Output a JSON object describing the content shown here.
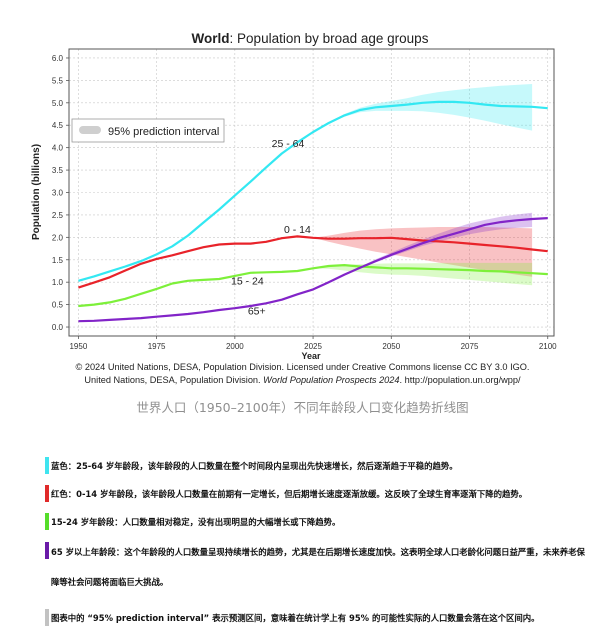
{
  "chart_data": {
    "type": "line",
    "title_bold": "World",
    "title_rest": ": Population by broad age groups",
    "xlabel": "Year",
    "ylabel": "Population (billions)",
    "xlim": [
      1947,
      2102
    ],
    "ylim": [
      -0.2,
      6.2
    ],
    "x_ticks": [
      1950,
      1975,
      2000,
      2025,
      2050,
      2075,
      2100
    ],
    "y_ticks": [
      0.0,
      0.5,
      1.0,
      1.5,
      2.0,
      2.5,
      3.0,
      3.5,
      4.0,
      4.5,
      5.0,
      5.5,
      6.0
    ],
    "y_tick_labels": [
      "0.0",
      "0.5",
      "1.0",
      "1.5",
      "2.0",
      "2.5",
      "3.0",
      "3.5",
      "4.0",
      "4.5",
      "5.0",
      "5.5",
      "6.0"
    ],
    "grid": true,
    "legend_label": "95% prediction interval",
    "legend_position": "top-left",
    "projection_start": 2024,
    "series": [
      {
        "name": "25 - 64",
        "color": "#33e8f2",
        "x": [
          1950,
          1955,
          1960,
          1965,
          1970,
          1975,
          1980,
          1985,
          1990,
          1995,
          2000,
          2005,
          2010,
          2015,
          2020,
          2025,
          2030,
          2035,
          2040,
          2045,
          2050,
          2055,
          2060,
          2065,
          2070,
          2075,
          2080,
          2085,
          2090,
          2095,
          2100
        ],
        "values": [
          1.03,
          1.13,
          1.24,
          1.35,
          1.47,
          1.62,
          1.8,
          2.04,
          2.33,
          2.62,
          2.93,
          3.24,
          3.56,
          3.87,
          4.12,
          4.35,
          4.55,
          4.72,
          4.84,
          4.9,
          4.93,
          4.96,
          5.0,
          5.02,
          5.02,
          5.0,
          4.96,
          4.93,
          4.92,
          4.91,
          4.88
        ],
        "band_low": [
          4.35,
          4.54,
          4.69,
          4.79,
          4.82,
          4.82,
          4.82,
          4.81,
          4.78,
          4.73,
          4.67,
          4.6,
          4.52,
          4.45,
          4.38
        ],
        "band_high": [
          4.35,
          4.56,
          4.75,
          4.89,
          4.98,
          5.04,
          5.1,
          5.18,
          5.24,
          5.28,
          5.32,
          5.35,
          5.38,
          5.4,
          5.42
        ]
      },
      {
        "name": "0 - 14",
        "color": "#e8232a",
        "x": [
          1950,
          1955,
          1960,
          1965,
          1970,
          1975,
          1980,
          1985,
          1990,
          1995,
          2000,
          2005,
          2010,
          2015,
          2020,
          2025,
          2030,
          2035,
          2040,
          2045,
          2050,
          2055,
          2060,
          2065,
          2070,
          2075,
          2080,
          2085,
          2090,
          2095,
          2100
        ],
        "values": [
          0.88,
          0.99,
          1.11,
          1.26,
          1.41,
          1.52,
          1.6,
          1.69,
          1.78,
          1.84,
          1.86,
          1.86,
          1.9,
          1.98,
          2.02,
          1.99,
          1.97,
          1.97,
          1.98,
          1.98,
          1.99,
          1.96,
          1.93,
          1.91,
          1.89,
          1.86,
          1.83,
          1.8,
          1.77,
          1.73,
          1.69
        ],
        "band_low": [
          1.99,
          1.9,
          1.82,
          1.75,
          1.68,
          1.62,
          1.56,
          1.5,
          1.44,
          1.38,
          1.32,
          1.27,
          1.22,
          1.17,
          1.12
        ],
        "band_high": [
          1.99,
          2.04,
          2.1,
          2.15,
          2.18,
          2.2,
          2.21,
          2.22,
          2.23,
          2.23,
          2.23,
          2.23,
          2.22,
          2.21,
          2.2
        ]
      },
      {
        "name": "15 - 24",
        "color": "#7df03a",
        "x": [
          1950,
          1955,
          1960,
          1965,
          1970,
          1975,
          1980,
          1985,
          1990,
          1995,
          2000,
          2005,
          2010,
          2015,
          2020,
          2025,
          2030,
          2035,
          2040,
          2045,
          2050,
          2055,
          2060,
          2065,
          2070,
          2075,
          2080,
          2085,
          2090,
          2095,
          2100
        ],
        "values": [
          0.47,
          0.5,
          0.55,
          0.63,
          0.74,
          0.85,
          0.97,
          1.03,
          1.05,
          1.07,
          1.14,
          1.21,
          1.22,
          1.23,
          1.25,
          1.31,
          1.36,
          1.38,
          1.35,
          1.33,
          1.31,
          1.31,
          1.3,
          1.29,
          1.28,
          1.27,
          1.25,
          1.24,
          1.22,
          1.2,
          1.18
        ],
        "band_low": [
          1.31,
          1.3,
          1.26,
          1.22,
          1.19,
          1.17,
          1.16,
          1.14,
          1.11,
          1.08,
          1.05,
          1.02,
          0.99,
          0.96,
          0.93
        ],
        "band_high": [
          1.31,
          1.37,
          1.39,
          1.4,
          1.41,
          1.42,
          1.42,
          1.42,
          1.43,
          1.43,
          1.43,
          1.43,
          1.43,
          1.43,
          1.43
        ]
      },
      {
        "name": "65+",
        "color": "#8224c8",
        "x": [
          1950,
          1955,
          1960,
          1965,
          1970,
          1975,
          1980,
          1985,
          1990,
          1995,
          2000,
          2005,
          2010,
          2015,
          2020,
          2025,
          2030,
          2035,
          2040,
          2045,
          2050,
          2055,
          2060,
          2065,
          2070,
          2075,
          2080,
          2085,
          2090,
          2095,
          2100
        ],
        "values": [
          0.13,
          0.14,
          0.16,
          0.18,
          0.2,
          0.23,
          0.26,
          0.29,
          0.33,
          0.38,
          0.42,
          0.47,
          0.53,
          0.61,
          0.73,
          0.84,
          1.0,
          1.17,
          1.32,
          1.47,
          1.61,
          1.74,
          1.87,
          1.98,
          2.08,
          2.18,
          2.28,
          2.34,
          2.38,
          2.41,
          2.43
        ],
        "band_low": [
          0.84,
          0.99,
          1.16,
          1.3,
          1.44,
          1.57,
          1.69,
          1.81,
          1.9,
          1.99,
          2.07,
          2.13,
          2.18,
          2.21,
          2.23
        ],
        "band_high": [
          0.84,
          1.01,
          1.18,
          1.34,
          1.51,
          1.66,
          1.81,
          1.95,
          2.08,
          2.2,
          2.31,
          2.39,
          2.46,
          2.51,
          2.55
        ]
      }
    ],
    "line_labels": [
      {
        "text": "25 - 64",
        "x": 2017,
        "y": 4.02
      },
      {
        "text": "0 - 14",
        "x": 2020,
        "y": 2.1
      },
      {
        "text": "15 - 24",
        "x": 2004,
        "y": 0.95
      },
      {
        "text": "65+",
        "x": 2007,
        "y": 0.28
      }
    ]
  },
  "credit": {
    "line1": "© 2024 United Nations, DESA, Population Division. Licensed under Creative Commons license CC BY 3.0 IGO.",
    "line2_a": "United Nations, DESA, Population Division. ",
    "line2_italic": "World Population Prospects 2024",
    "line2_b": ". http://population.un.org/wpp/"
  },
  "caption": "世界人口（1950–2100年）不同年龄段人口变化趋势折线图",
  "notes": [
    {
      "color": "#3fe4ef",
      "text": "蓝色：25-64 岁年龄段，该年龄段的人口数量在整个时间段内呈现出先快速增长，然后逐渐趋于平稳的趋势。"
    },
    {
      "color": "#e02a2a",
      "text": "红色：0-14 岁年龄段，该年龄段人口数量在前期有一定增长，但后期增长速度逐渐放缓。这反映了全球生育率逐渐下降的趋势。"
    },
    {
      "color": "#55dd2a",
      "text": "15-24 岁年龄段：人口数量相对稳定，没有出现明显的大幅增长或下降趋势。"
    },
    {
      "color": "#6a1aa8",
      "text": "65 岁以上年龄段：这个年龄段的人口数量呈现持续增长的趋势，尤其是在后期增长速度加快。这表明全球人口老龄化问题日益严重，未来养老保障等社会问题将面临巨大挑战。"
    },
    {
      "color": "#c2c2c2",
      "text": "图表中的 “95% prediction interval” 表示预测区间，意味着在统计学上有 95% 的可能性实际的人口数量会落在这个区间内。"
    }
  ]
}
